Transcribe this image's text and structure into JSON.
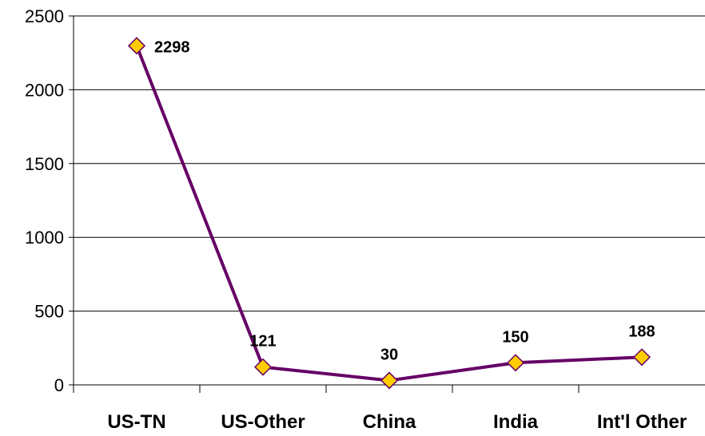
{
  "chart_data": {
    "type": "line",
    "categories": [
      "US-TN",
      "US-Other",
      "China",
      "India",
      "Int'l Other"
    ],
    "values": [
      2298,
      121,
      30,
      150,
      188
    ],
    "data_labels": [
      "2298",
      "121",
      "30",
      "150",
      "188"
    ],
    "ylim": [
      0,
      2500
    ],
    "yticks": [
      0,
      500,
      1000,
      1500,
      2000,
      2500
    ],
    "ytick_labels": [
      "0",
      "500",
      "1000",
      "1500",
      "2000",
      "2500"
    ],
    "grid": true,
    "legend": "none",
    "colors": {
      "line": "#660066",
      "marker_fill": "#FFCC00",
      "marker_stroke": "#660066",
      "gridline": "#000000",
      "axis": "#000000"
    }
  }
}
